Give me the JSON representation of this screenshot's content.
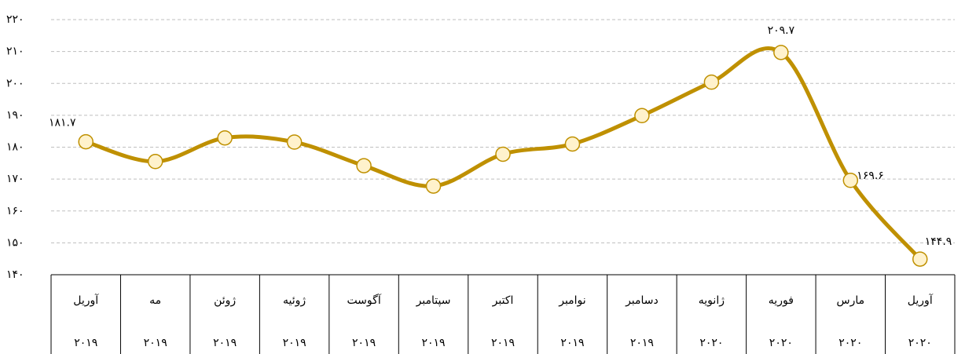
{
  "chart_data": {
    "type": "line",
    "categories": [
      [
        "آوریل",
        "۲۰۱۹"
      ],
      [
        "مه",
        "۲۰۱۹"
      ],
      [
        "ژوئن",
        "۲۰۱۹"
      ],
      [
        "ژوئیه",
        "۲۰۱۹"
      ],
      [
        "آگوست",
        "۲۰۱۹"
      ],
      [
        "سپتامبر",
        "۲۰۱۹"
      ],
      [
        "اکتبر",
        "۲۰۱۹"
      ],
      [
        "نوامبر",
        "۲۰۱۹"
      ],
      [
        "دسامبر",
        "۲۰۱۹"
      ],
      [
        "ژانویه",
        "۲۰۲۰"
      ],
      [
        "فوریه",
        "۲۰۲۰"
      ],
      [
        "مارس",
        "۲۰۲۰"
      ],
      [
        "آوریل",
        "۲۰۲۰"
      ]
    ],
    "series": [
      {
        "color": "#bf9000",
        "values": [
          181.7,
          175.5,
          182.9,
          181.6,
          174.2,
          167.8,
          177.8,
          181.0,
          189.9,
          200.4,
          209.7,
          169.6,
          144.9
        ],
        "value_labels": [
          "۱۸۱.۷",
          null,
          null,
          null,
          null,
          null,
          null,
          null,
          null,
          null,
          "۲۰۹.۷",
          "۱۶۹.۶",
          "۱۴۴.۹"
        ]
      }
    ],
    "ylim": [
      140,
      220
    ],
    "yticks": [
      {
        "value": 140,
        "label": "۱۴۰"
      },
      {
        "value": 150,
        "label": "۱۵۰"
      },
      {
        "value": 160,
        "label": "۱۶۰"
      },
      {
        "value": 170,
        "label": "۱۷۰"
      },
      {
        "value": 180,
        "label": "۱۸۰"
      },
      {
        "value": 190,
        "label": "۱۹۰"
      },
      {
        "value": 200,
        "label": "۲۰۰"
      },
      {
        "value": 210,
        "label": "۲۱۰"
      },
      {
        "value": 220,
        "label": "۲۲۰"
      }
    ],
    "grid": true
  }
}
